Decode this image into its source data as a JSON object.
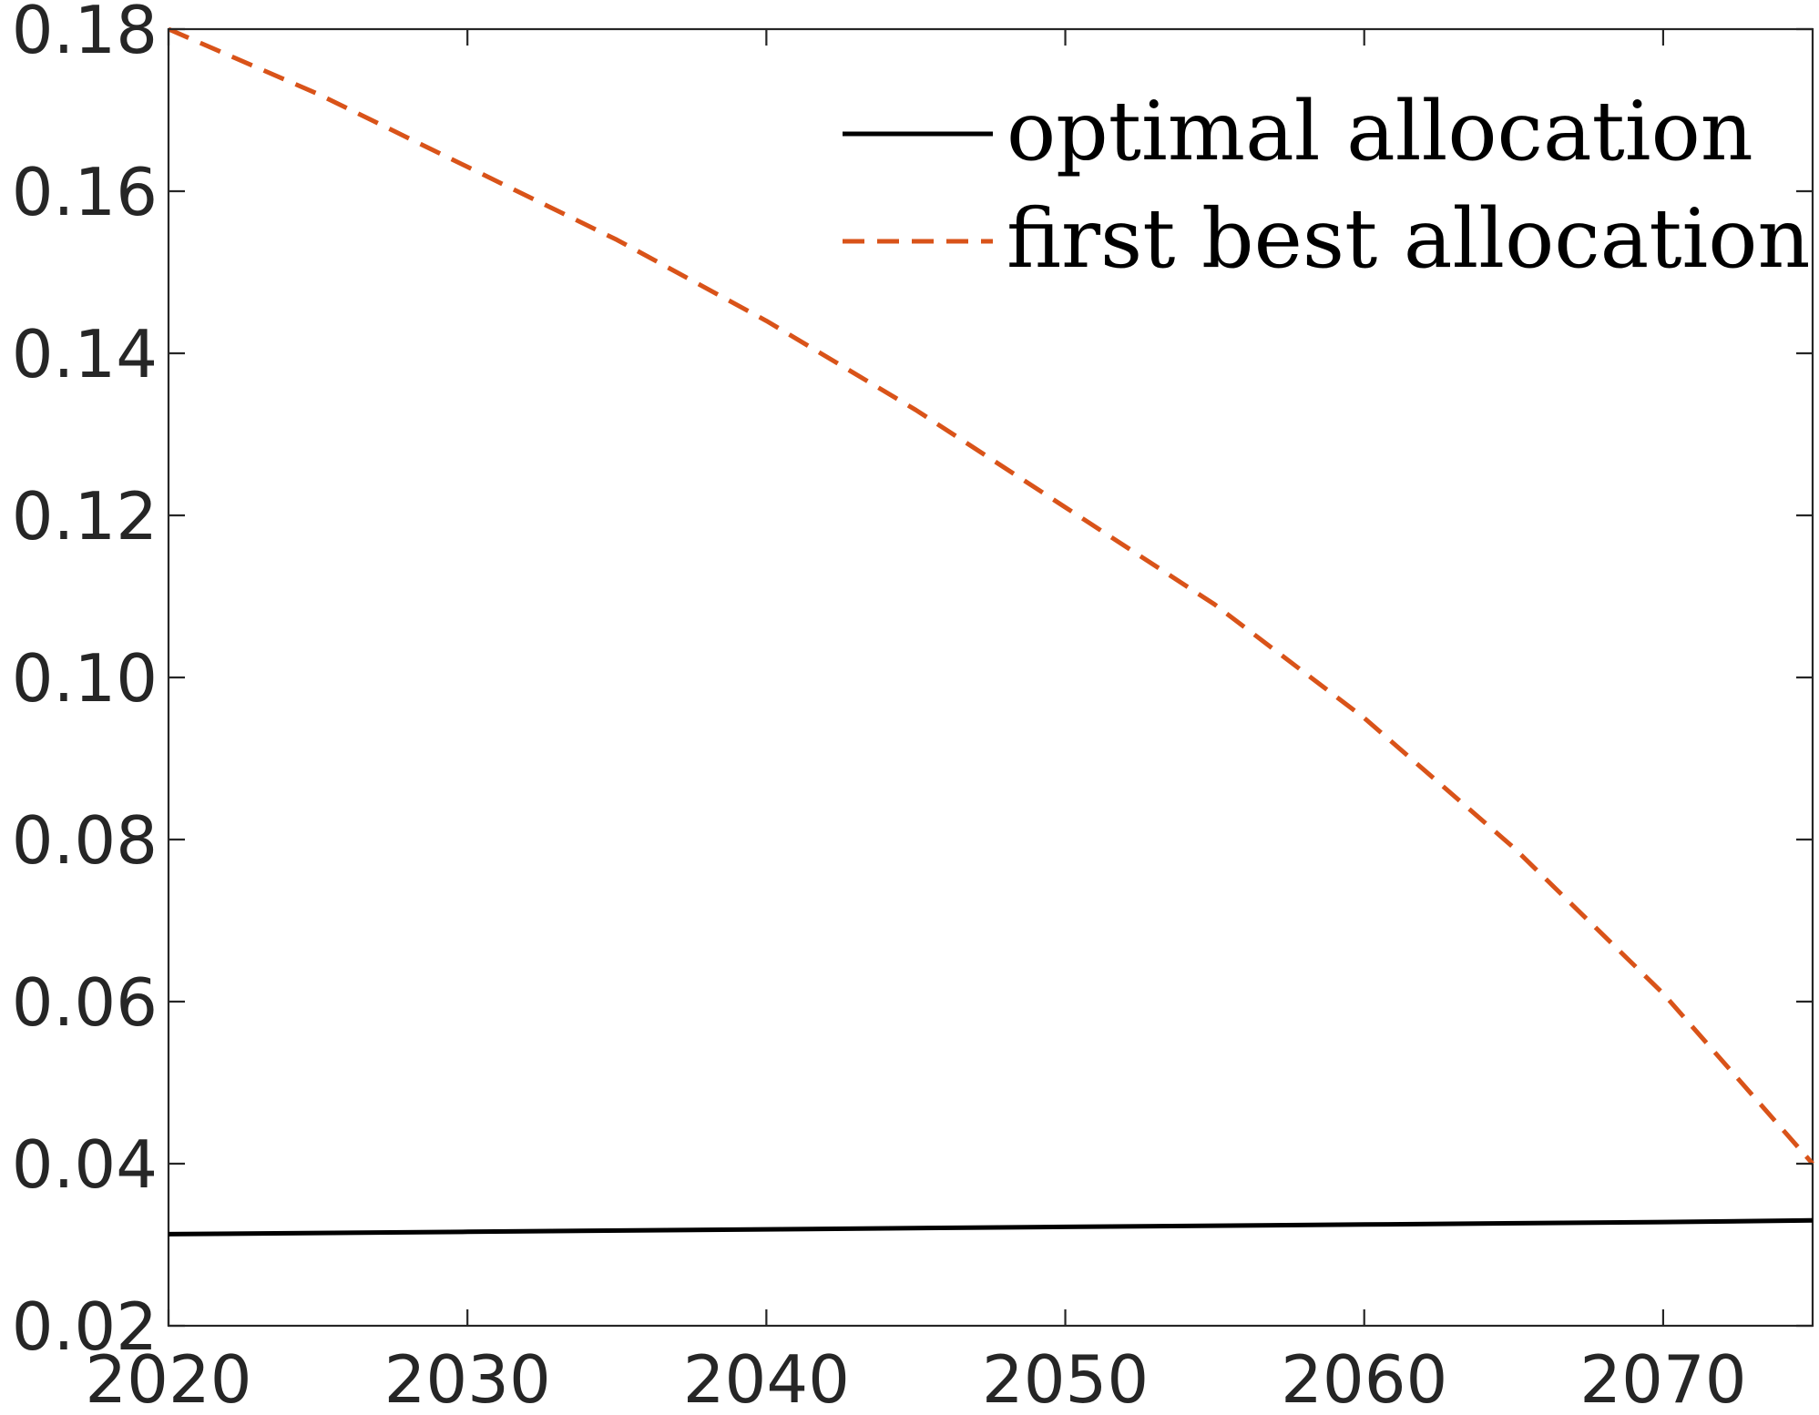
{
  "chart_data": {
    "type": "line",
    "title": "",
    "xlabel": "",
    "ylabel": "",
    "xlim": [
      2020,
      2075
    ],
    "ylim": [
      0.02,
      0.18
    ],
    "x_ticks": [
      2020,
      2030,
      2040,
      2050,
      2060,
      2070
    ],
    "x_tick_labels": [
      "2020",
      "2030",
      "2040",
      "2050",
      "2060",
      "2070"
    ],
    "y_ticks": [
      0.02,
      0.04,
      0.06,
      0.08,
      0.1,
      0.12,
      0.14,
      0.16,
      0.18
    ],
    "y_tick_labels": [
      "0.02",
      "0.04",
      "0.06",
      "0.08",
      "0.10",
      "0.12",
      "0.14",
      "0.16",
      "0.18"
    ],
    "grid": false,
    "legend_position": "top-right",
    "series": [
      {
        "name": "optimal allocation",
        "color": "#000000",
        "dash": "solid",
        "x": [
          2020,
          2030,
          2040,
          2050,
          2060,
          2070,
          2075
        ],
        "y": [
          0.0313,
          0.0316,
          0.0319,
          0.0322,
          0.0325,
          0.0328,
          0.033
        ]
      },
      {
        "name": "first best allocation",
        "color": "#D95319",
        "dash": "dashed",
        "x": [
          2020,
          2025,
          2030,
          2035,
          2040,
          2045,
          2050,
          2055,
          2060,
          2065,
          2070,
          2075
        ],
        "y": [
          0.18,
          0.172,
          0.163,
          0.154,
          0.144,
          0.133,
          0.121,
          0.109,
          0.095,
          0.079,
          0.061,
          0.04
        ]
      }
    ]
  }
}
